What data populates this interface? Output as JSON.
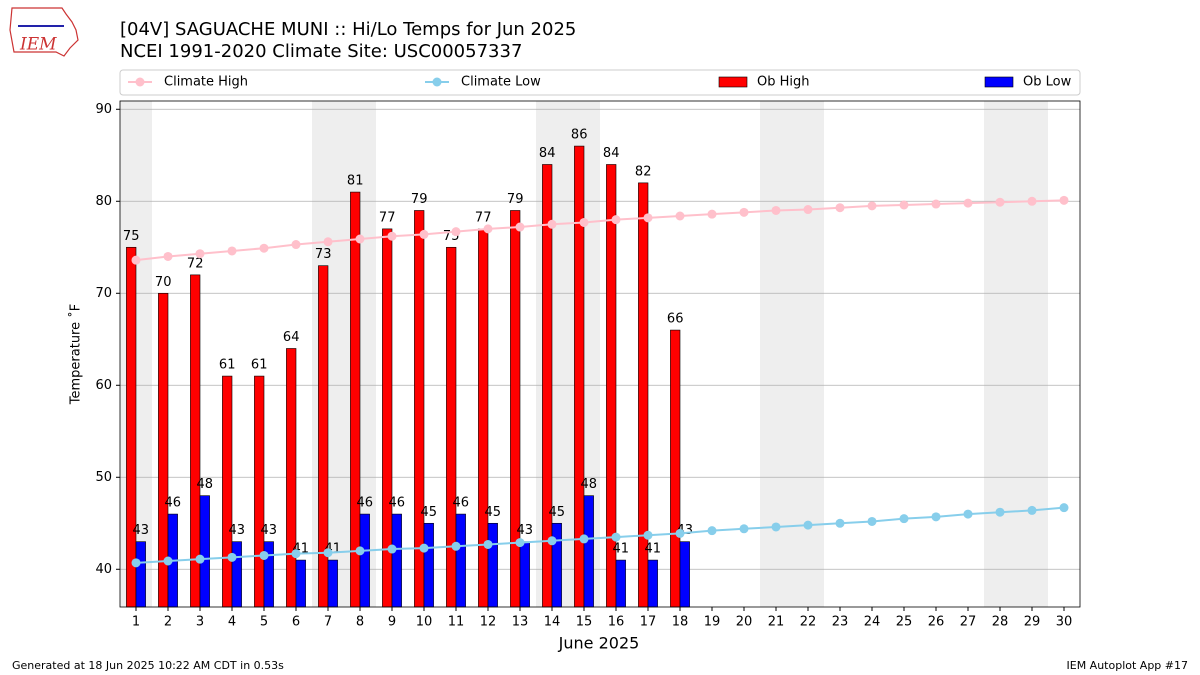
{
  "chart_data": {
    "type": "bar_line",
    "title": "[04V] SAGUACHE MUNI :: Hi/Lo Temps for Jun 2025",
    "subtitle": "NCEI 1991-2020 Climate Site: USC00057337",
    "logo": "IEM",
    "xlabel": "June 2025",
    "ylabel": "Temperature ˚F",
    "footer_left": "Generated at 18 Jun 2025 10:22 AM CDT in 0.53s",
    "footer_right": "IEM Autoplot App #17",
    "x": [
      1,
      2,
      3,
      4,
      5,
      6,
      7,
      8,
      9,
      10,
      11,
      12,
      13,
      14,
      15,
      16,
      17,
      18,
      19,
      20,
      21,
      22,
      23,
      24,
      25,
      26,
      27,
      28,
      29,
      30
    ],
    "xlim": [
      0.5,
      30.5
    ],
    "xticks": [
      1,
      2,
      3,
      4,
      5,
      6,
      7,
      8,
      9,
      10,
      11,
      12,
      13,
      14,
      15,
      16,
      17,
      18,
      19,
      20,
      21,
      22,
      23,
      24,
      25,
      26,
      27,
      28,
      29,
      30
    ],
    "ylim": [
      35.9,
      90.9
    ],
    "yticks": [
      40,
      50,
      60,
      70,
      80,
      90
    ],
    "grid": true,
    "shaded_days": [
      1,
      7,
      8,
      14,
      15,
      21,
      22,
      28,
      29
    ],
    "shade_color": "#eeeeee",
    "series": [
      {
        "name": "Climate High",
        "kind": "line",
        "color": "pink",
        "values": [
          73.6,
          74.0,
          74.3,
          74.6,
          74.9,
          75.3,
          75.6,
          75.9,
          76.2,
          76.4,
          76.7,
          77.0,
          77.2,
          77.5,
          77.7,
          78.0,
          78.2,
          78.4,
          78.6,
          78.8,
          79.0,
          79.1,
          79.3,
          79.5,
          79.6,
          79.7,
          79.8,
          79.9,
          80.0,
          80.1
        ]
      },
      {
        "name": "Climate Low",
        "kind": "line",
        "color": "skyblue",
        "values": [
          40.7,
          40.9,
          41.1,
          41.3,
          41.5,
          41.7,
          41.8,
          42.0,
          42.2,
          42.3,
          42.5,
          42.7,
          42.9,
          43.1,
          43.3,
          43.5,
          43.7,
          43.9,
          44.2,
          44.4,
          44.6,
          44.8,
          45.0,
          45.2,
          45.5,
          45.7,
          46.0,
          46.2,
          46.4,
          46.7
        ]
      },
      {
        "name": "Ob High",
        "kind": "bar",
        "color": "red",
        "values": [
          75,
          70,
          72,
          61,
          61,
          64,
          73,
          81,
          77,
          79,
          75,
          77,
          79,
          84,
          86,
          84,
          82,
          66,
          null,
          null,
          null,
          null,
          null,
          null,
          null,
          null,
          null,
          null,
          null,
          null
        ]
      },
      {
        "name": "Ob Low",
        "kind": "bar",
        "color": "blue",
        "values": [
          43,
          46,
          48,
          43,
          43,
          41,
          41,
          46,
          46,
          45,
          46,
          45,
          43,
          45,
          48,
          41,
          41,
          43,
          null,
          null,
          null,
          null,
          null,
          null,
          null,
          null,
          null,
          null,
          null,
          null
        ]
      }
    ]
  }
}
